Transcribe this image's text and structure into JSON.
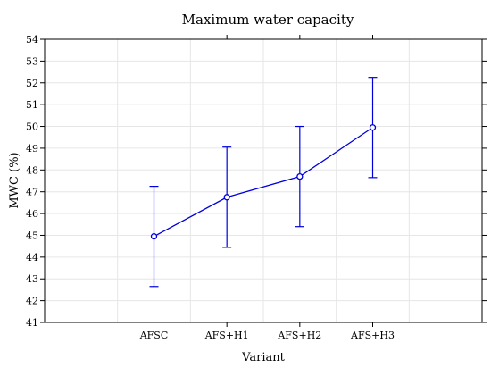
{
  "chart_data": {
    "type": "line",
    "title": "Maximum water capacity",
    "xlabel": "Variant",
    "ylabel": "MWC (%)",
    "categories": [
      "AFSC",
      "AFS+H1",
      "AFS+H2",
      "AFS+H3"
    ],
    "series": [
      {
        "values": [
          44.95,
          46.75,
          47.7,
          49.95
        ],
        "error_low": [
          42.65,
          44.45,
          45.4,
          47.65
        ],
        "error_high": [
          47.25,
          49.05,
          50.0,
          52.25
        ],
        "color": "#0000dd",
        "marker": "open-circle"
      }
    ],
    "ylim": [
      41,
      54
    ],
    "yticks": [
      41,
      42,
      43,
      44,
      45,
      46,
      47,
      48,
      49,
      50,
      51,
      52,
      53,
      54
    ],
    "grid": true
  }
}
